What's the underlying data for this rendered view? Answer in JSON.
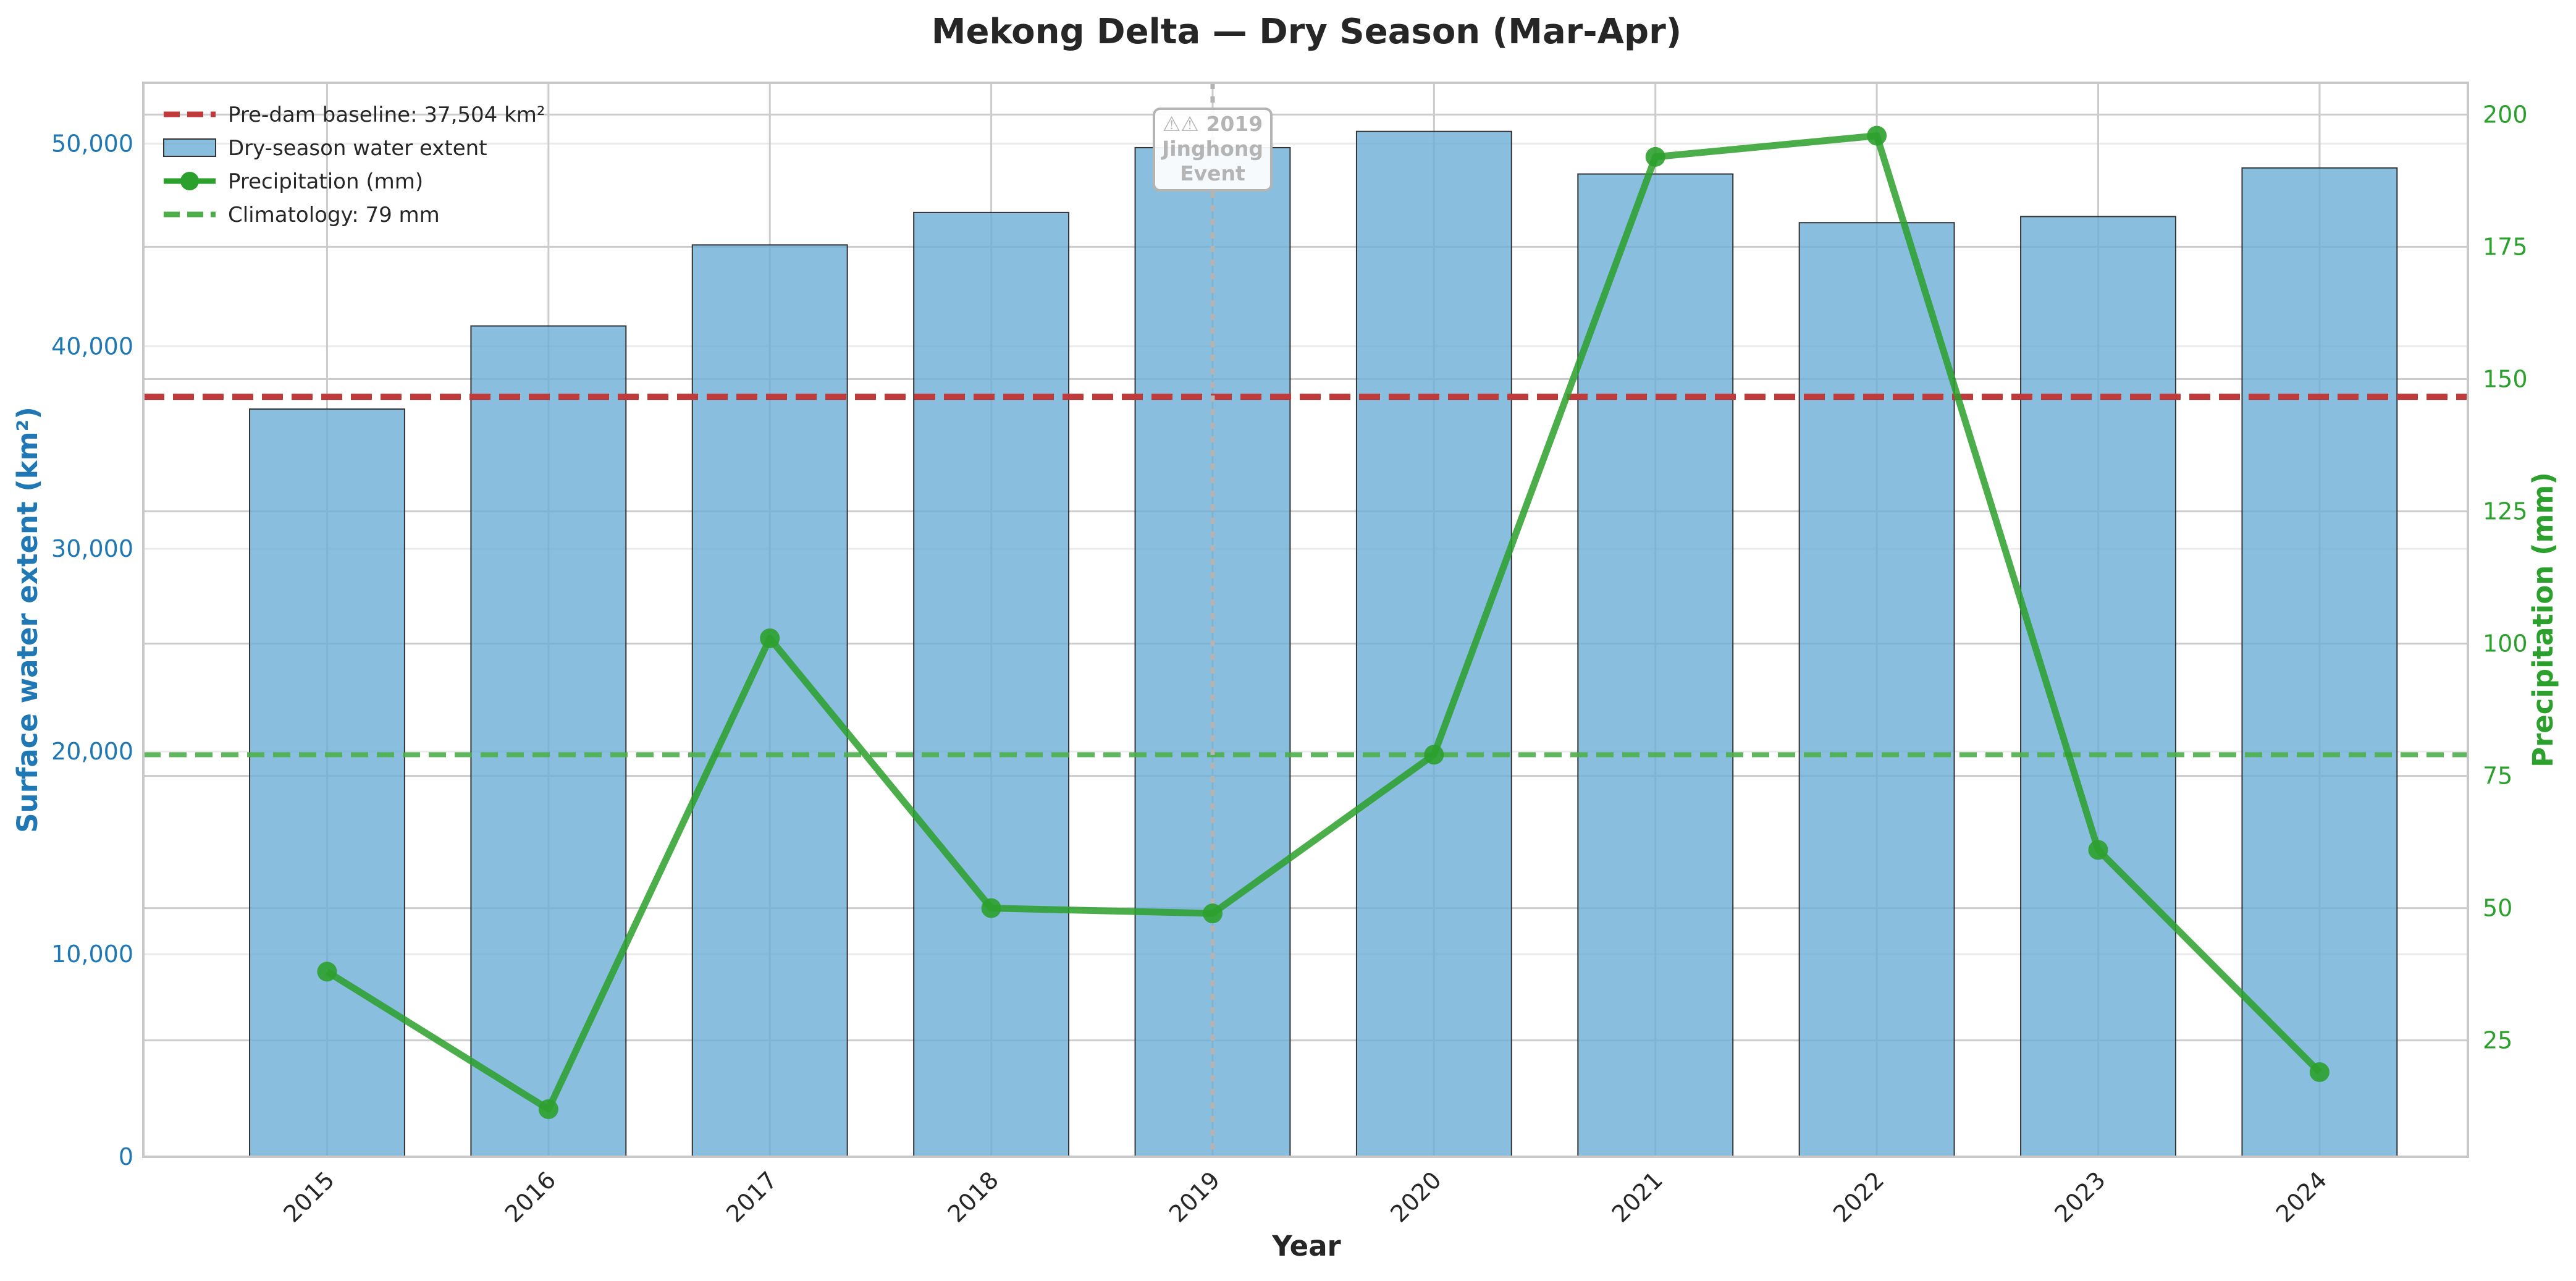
{
  "chart_data": {
    "type": "bar",
    "title": "Mekong Delta — Dry Season (Mar-Apr)",
    "xlabel": "Year",
    "ylabel": "Surface water extent (km²)",
    "y2label": "Precipitation (mm)",
    "categories": [
      "2015",
      "2016",
      "2017",
      "2018",
      "2019",
      "2020",
      "2021",
      "2022",
      "2023",
      "2024"
    ],
    "ylim": [
      0,
      53000
    ],
    "y2lim": [
      3,
      206
    ],
    "yticks": [
      0,
      10000,
      20000,
      30000,
      40000,
      50000
    ],
    "yticklabels": [
      "0",
      "10,000",
      "20,000",
      "30,000",
      "40,000",
      "50,000"
    ],
    "y2ticks": [
      25,
      50,
      75,
      100,
      125,
      150,
      175,
      200
    ],
    "y2ticklabels": [
      "25",
      "50",
      "75",
      "100",
      "125",
      "150",
      "175",
      "200"
    ],
    "grid": true,
    "legend_position": "top-left",
    "series": [
      {
        "name": "Dry-season water extent",
        "type": "bar",
        "axis": "left",
        "color": "#6baed6",
        "values": [
          36900,
          41000,
          45000,
          46600,
          49800,
          50600,
          48500,
          46100,
          46400,
          48800
        ]
      },
      {
        "name": "Precipitation (mm)",
        "type": "line",
        "axis": "right",
        "color": "#2ca02c",
        "values": [
          38,
          12,
          101,
          50,
          49,
          79,
          192,
          196,
          61,
          19
        ]
      }
    ],
    "reference_lines": [
      {
        "name": "Pre-dam baseline: 37,504 km²",
        "axis": "left",
        "value": 37504,
        "color": "#c0393b"
      },
      {
        "name": "Climatology: 79 mm",
        "axis": "right",
        "value": 79,
        "color": "#4daf4a"
      }
    ],
    "annotation": {
      "text": [
        "⚠⚠ 2019",
        "Jinghong",
        "Event"
      ],
      "category": "2019"
    }
  },
  "colors": {
    "left_axis": "#1f77b4",
    "right_axis": "#2ca02c",
    "grid": "#cccccc",
    "bar_edge": "#333333"
  }
}
